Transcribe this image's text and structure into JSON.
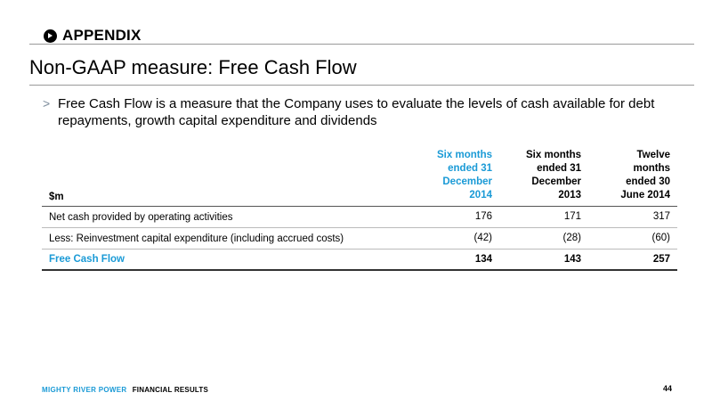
{
  "section": {
    "label": "APPENDIX",
    "icon": "play-circle-icon"
  },
  "title": "Non-GAAP measure: Free Cash Flow",
  "bullet": {
    "marker": ">",
    "text": "Free Cash Flow is a measure that the Company uses to evaluate the levels of cash available for debt repayments, growth capital expenditure and dividends"
  },
  "table": {
    "unit_label": "$m",
    "columns": [
      {
        "lines": [
          "Six months",
          "ended 31",
          "December",
          "2014"
        ],
        "highlight": true
      },
      {
        "lines": [
          "Six months",
          "ended 31",
          "December",
          "2013"
        ],
        "highlight": false
      },
      {
        "lines": [
          "Twelve",
          "months",
          "ended 30",
          "June 2014"
        ],
        "highlight": false
      }
    ],
    "rows": [
      {
        "label": "Net cash provided by operating activities",
        "values": [
          "176",
          "171",
          "317"
        ]
      },
      {
        "label": "Less: Reinvestment capital expenditure (including accrued costs)",
        "values": [
          "(42)",
          "(28)",
          "(60)"
        ]
      }
    ],
    "total": {
      "label": "Free Cash Flow",
      "values": [
        "134",
        "143",
        "257"
      ]
    }
  },
  "footer": {
    "brand": "MIGHTY RIVER POWER",
    "section": "FINANCIAL RESULTS",
    "page_number": "44"
  },
  "colors": {
    "accent": "#1a9ad6",
    "rule": "#9a9a9a"
  }
}
